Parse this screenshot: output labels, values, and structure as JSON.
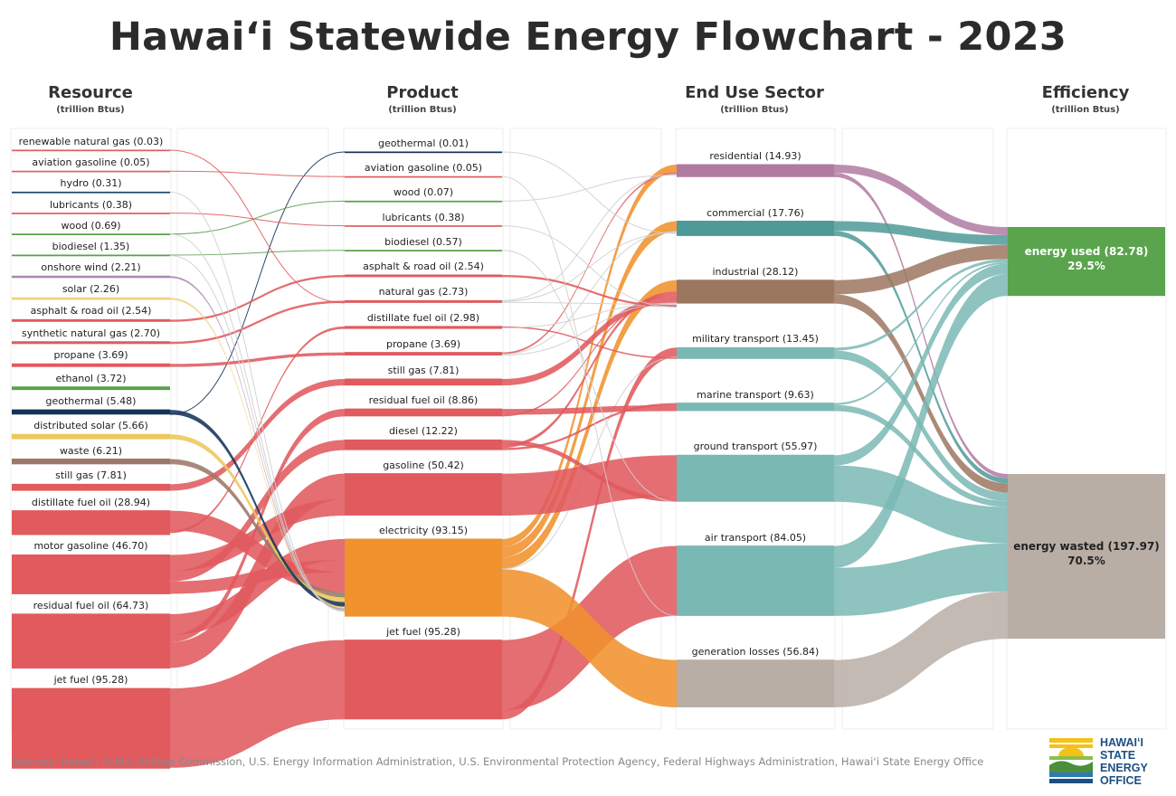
{
  "title": "Hawaiʻi Statewide Energy Flowchart - 2023",
  "columns": [
    {
      "name": "Resource",
      "unit": "(trillion Btus)"
    },
    {
      "name": "Product",
      "unit": "(trillion Btus)"
    },
    {
      "name": "End Use Sector",
      "unit": "(trillion Btus)"
    },
    {
      "name": "Efficiency",
      "unit": "(trillion Btus)"
    }
  ],
  "chart_data": {
    "type": "sankey",
    "unit": "trillion Btus",
    "resources": [
      {
        "label": "renewable natural gas (0.03)",
        "value": 0.03,
        "color": "#e05a5e"
      },
      {
        "label": "aviation gasoline (0.05)",
        "value": 0.05,
        "color": "#e05a5e"
      },
      {
        "label": "hydro (0.31)",
        "value": 0.31,
        "color": "#1c4570"
      },
      {
        "label": "lubricants (0.38)",
        "value": 0.38,
        "color": "#e05a5e"
      },
      {
        "label": "wood (0.69)",
        "value": 0.69,
        "color": "#5aa04c"
      },
      {
        "label": "biodiesel (1.35)",
        "value": 1.35,
        "color": "#5aa04c"
      },
      {
        "label": "onshore wind (2.21)",
        "value": 2.21,
        "color": "#a98bb0"
      },
      {
        "label": "solar (2.26)",
        "value": 2.26,
        "color": "#f0d27e"
      },
      {
        "label": "asphalt & road oil (2.54)",
        "value": 2.54,
        "color": "#e05a5e"
      },
      {
        "label": "synthetic natural gas (2.70)",
        "value": 2.7,
        "color": "#e05a5e"
      },
      {
        "label": "propane (3.69)",
        "value": 3.69,
        "color": "#e05a5e"
      },
      {
        "label": "ethanol (3.72)",
        "value": 3.72,
        "color": "#5aa04c"
      },
      {
        "label": "geothermal (5.48)",
        "value": 5.48,
        "color": "#15335a"
      },
      {
        "label": "distributed solar (5.66)",
        "value": 5.66,
        "color": "#ecc85a"
      },
      {
        "label": "waste (6.21)",
        "value": 6.21,
        "color": "#9c7868"
      },
      {
        "label": "still gas (7.81)",
        "value": 7.81,
        "color": "#e05a5e"
      },
      {
        "label": "distillate fuel oil (28.94)",
        "value": 28.94,
        "color": "#e05a5e"
      },
      {
        "label": "motor gasoline (46.70)",
        "value": 46.7,
        "color": "#e05a5e"
      },
      {
        "label": "residual fuel oil (64.73)",
        "value": 64.73,
        "color": "#e05a5e"
      },
      {
        "label": "jet fuel (95.28)",
        "value": 95.28,
        "color": "#e05a5e"
      }
    ],
    "products": [
      {
        "label": "geothermal (0.01)",
        "value": 0.01,
        "color": "#15335a"
      },
      {
        "label": "aviation gasoline (0.05)",
        "value": 0.05,
        "color": "#e05a5e"
      },
      {
        "label": "wood (0.07)",
        "value": 0.07,
        "color": "#5aa04c"
      },
      {
        "label": "lubricants (0.38)",
        "value": 0.38,
        "color": "#e05a5e"
      },
      {
        "label": "biodiesel (0.57)",
        "value": 0.57,
        "color": "#5aa04c"
      },
      {
        "label": "asphalt & road oil (2.54)",
        "value": 2.54,
        "color": "#e05a5e"
      },
      {
        "label": "natural gas (2.73)",
        "value": 2.73,
        "color": "#e05a5e"
      },
      {
        "label": "distillate fuel oil (2.98)",
        "value": 2.98,
        "color": "#e05a5e"
      },
      {
        "label": "propane (3.69)",
        "value": 3.69,
        "color": "#e05a5e"
      },
      {
        "label": "still gas (7.81)",
        "value": 7.81,
        "color": "#e05a5e"
      },
      {
        "label": "residual fuel oil (8.86)",
        "value": 8.86,
        "color": "#e05a5e"
      },
      {
        "label": "diesel (12.22)",
        "value": 12.22,
        "color": "#e05a5e"
      },
      {
        "label": "gasoline (50.42)",
        "value": 50.42,
        "color": "#e05a5e"
      },
      {
        "label": "electricity (93.15)",
        "value": 93.15,
        "color": "#f0922e"
      },
      {
        "label": "jet fuel (95.28)",
        "value": 95.28,
        "color": "#e05a5e"
      }
    ],
    "sectors": [
      {
        "label": "residential (14.93)",
        "value": 14.93,
        "color": "#b07aa1"
      },
      {
        "label": "commercial (17.76)",
        "value": 17.76,
        "color": "#4e9a98"
      },
      {
        "label": "industrial (28.12)",
        "value": 28.12,
        "color": "#9c7760"
      },
      {
        "label": "military transport (13.45)",
        "value": 13.45,
        "color": "#7ab8b4"
      },
      {
        "label": "marine transport (9.63)",
        "value": 9.63,
        "color": "#7ab8b4"
      },
      {
        "label": "ground transport (55.97)",
        "value": 55.97,
        "color": "#7ab8b4"
      },
      {
        "label": "air transport (84.05)",
        "value": 84.05,
        "color": "#7ab8b4"
      },
      {
        "label": "generation losses (56.84)",
        "value": 56.84,
        "color": "#b9aea6"
      }
    ],
    "efficiency": [
      {
        "label": "energy used (82.78)",
        "value": 82.78,
        "percent": "29.5%",
        "color": "#59a44c",
        "text_color": "#ffffff"
      },
      {
        "label": "energy wasted (197.97)",
        "value": 197.97,
        "percent": "70.5%",
        "color": "#b9aea6",
        "text_color": "#222222"
      }
    ]
  },
  "sources": "Sources: Hawaiʻi Public Utilities Commission, U.S. Energy Information Administration, U.S. Environmental Protection Agency, Federal Highways Administration, Hawaiʻi State Energy Office",
  "logo": {
    "line1": "HAWAIʻI",
    "line2": "STATE",
    "line3": "ENERGY",
    "line4": "OFFICE"
  }
}
